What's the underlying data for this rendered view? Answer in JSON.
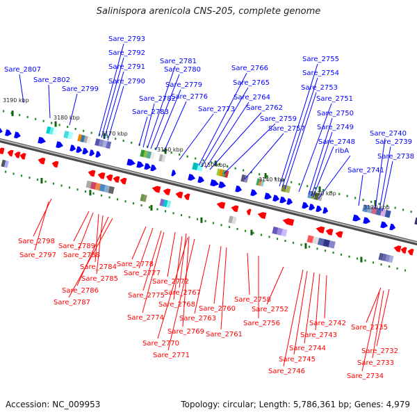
{
  "title": "Salinispora arenicola CNS-205, complete genome",
  "footer": {
    "accession": "Accession: NC_009953",
    "summary": "Topology: circular; Length: 5,786,361 bp; Genes: 4,979"
  },
  "colors": {
    "forward": "#0000ff",
    "reverse": "#ff0000",
    "backbone": "#888888",
    "tick": "#228822"
  },
  "ruler_labels": [
    "3190 kbp",
    "3180 kbp",
    "3170 kbp",
    "3160 kbp",
    "3150 kbp",
    "3140 kbp",
    "3130 kbp",
    "3120 kbp"
  ],
  "forward_labels": [
    "Sare_2807",
    "Sare_2802",
    "Sare_2799",
    "Sare_2793",
    "Sare_2792",
    "Sare_2791",
    "Sare_2790",
    "Sare_2783",
    "Sare_2782",
    "Sare_2781",
    "Sare_2780",
    "Sare_2779",
    "Sare_2776",
    "Sare_2773",
    "Sare_2766",
    "Sare_2765",
    "Sare_2764",
    "Sare_2762",
    "Sare_2759",
    "Sare_2757",
    "Sare_2755",
    "Sare_2754",
    "Sare_2753",
    "Sare_2751",
    "Sare_2750",
    "Sare_2749",
    "Sare_2748",
    "ribA",
    "Sare_2741",
    "Sare_2740",
    "Sare_2739",
    "Sare_2738"
  ],
  "reverse_labels": [
    "Sare_2798",
    "Sare_2797",
    "Sare_2789",
    "Sare_2788",
    "Sare_2784",
    "Sare_2785",
    "Sare_2786",
    "Sare_2787",
    "Sare_2778",
    "Sare_2777",
    "Sare_2775",
    "Sare_2774",
    "Sare_2772",
    "Sare_2767",
    "Sare_2768",
    "Sare_2769",
    "Sare_2770",
    "Sare_2771",
    "Sare_2763",
    "Sare_2760",
    "Sare_2761",
    "Sare_2758",
    "Sare_2756",
    "Sare_2752",
    "Sare_2742",
    "Sare_2743",
    "Sare_2744",
    "Sare_2745",
    "Sare_2746",
    "Sare_2735",
    "Sare_2732",
    "Sare_2733",
    "Sare_2734"
  ]
}
